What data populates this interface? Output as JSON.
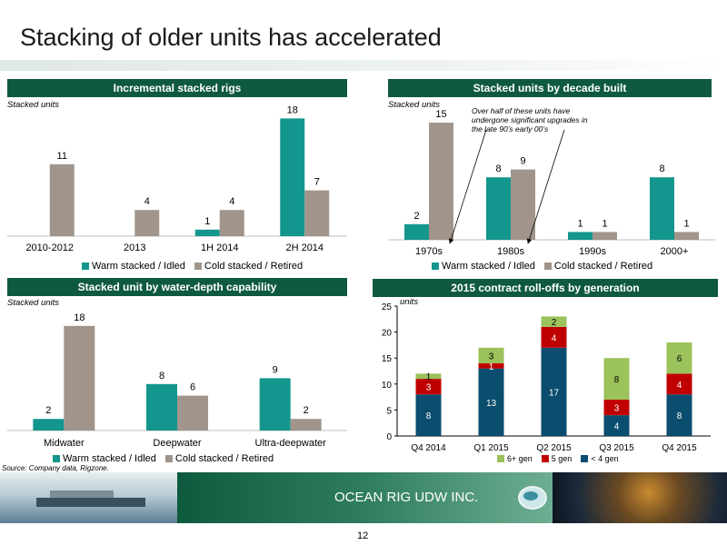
{
  "title": "Stacking of older units has accelerated",
  "colors": {
    "teal": "#13968d",
    "gray": "#a1958b",
    "header": "#0f5a3f",
    "blue": "#0b4d6e",
    "red": "#c00000",
    "green": "#9bc25b"
  },
  "panels": {
    "p1": {
      "title": "Incremental stacked rigs",
      "ylabel": "Stacked units",
      "legend": [
        "Warm stacked / Idled",
        "Cold stacked / Retired"
      ]
    },
    "p2": {
      "title": "Stacked units by decade built",
      "ylabel": "Stacked units",
      "legend": [
        "Warm stacked / Idled",
        "Cold stacked / Retired"
      ],
      "annotation": "Over half of these units have undergone significant upgrades in the late 90’s early 00’s"
    },
    "p3": {
      "title": "Stacked unit by water-depth capability",
      "ylabel": "Stacked units",
      "legend": [
        "Warm stacked / Idled",
        "Cold stacked / Retired"
      ]
    },
    "p4": {
      "title": "2015 contract roll-offs by generation",
      "ylabel": "units",
      "legend": [
        "6+ gen",
        "5 gen",
        "< 4 gen"
      ]
    }
  },
  "chart_data": [
    {
      "type": "bar",
      "title": "Incremental stacked rigs",
      "ylabel": "Stacked units",
      "categories": [
        "2010-2012",
        "2013",
        "1H 2014",
        "2H 2014"
      ],
      "series": [
        {
          "name": "Warm stacked / Idled",
          "values": [
            null,
            null,
            1,
            18
          ]
        },
        {
          "name": "Cold stacked / Retired",
          "values": [
            11,
            4,
            4,
            7
          ]
        }
      ]
    },
    {
      "type": "bar",
      "title": "Stacked units by decade built",
      "ylabel": "Stacked units",
      "categories": [
        "1970s",
        "1980s",
        "1990s",
        "2000+"
      ],
      "series": [
        {
          "name": "Warm stacked / Idled",
          "values": [
            2,
            8,
            1,
            8
          ]
        },
        {
          "name": "Cold stacked / Retired",
          "values": [
            15,
            9,
            1,
            1
          ]
        }
      ]
    },
    {
      "type": "bar",
      "title": "Stacked unit by water-depth capability",
      "ylabel": "Stacked units",
      "categories": [
        "Midwater",
        "Deepwater",
        "Ultra-deepwater"
      ],
      "series": [
        {
          "name": "Warm stacked / Idled",
          "values": [
            2,
            8,
            9
          ]
        },
        {
          "name": "Cold stacked / Retired",
          "values": [
            18,
            6,
            2
          ]
        }
      ]
    },
    {
      "type": "bar",
      "stacked": true,
      "title": "2015 contract roll-offs by generation",
      "ylabel": "units",
      "categories": [
        "Q4 2014",
        "Q1 2015",
        "Q2 2015",
        "Q3 2015",
        "Q4 2015"
      ],
      "ylim": [
        0,
        25
      ],
      "yticks": [
        0,
        5,
        10,
        15,
        20,
        25
      ],
      "series": [
        {
          "name": "< 4 gen",
          "values": [
            8,
            13,
            17,
            4,
            8
          ]
        },
        {
          "name": "5 gen",
          "values": [
            3,
            1,
            4,
            3,
            4
          ]
        },
        {
          "name": "6+ gen",
          "values": [
            1,
            3,
            2,
            8,
            6
          ]
        }
      ]
    }
  ],
  "source": "Source: Company data, Rigzone.",
  "footer": {
    "company": "OCEAN RIG UDW INC.",
    "page": "12"
  }
}
